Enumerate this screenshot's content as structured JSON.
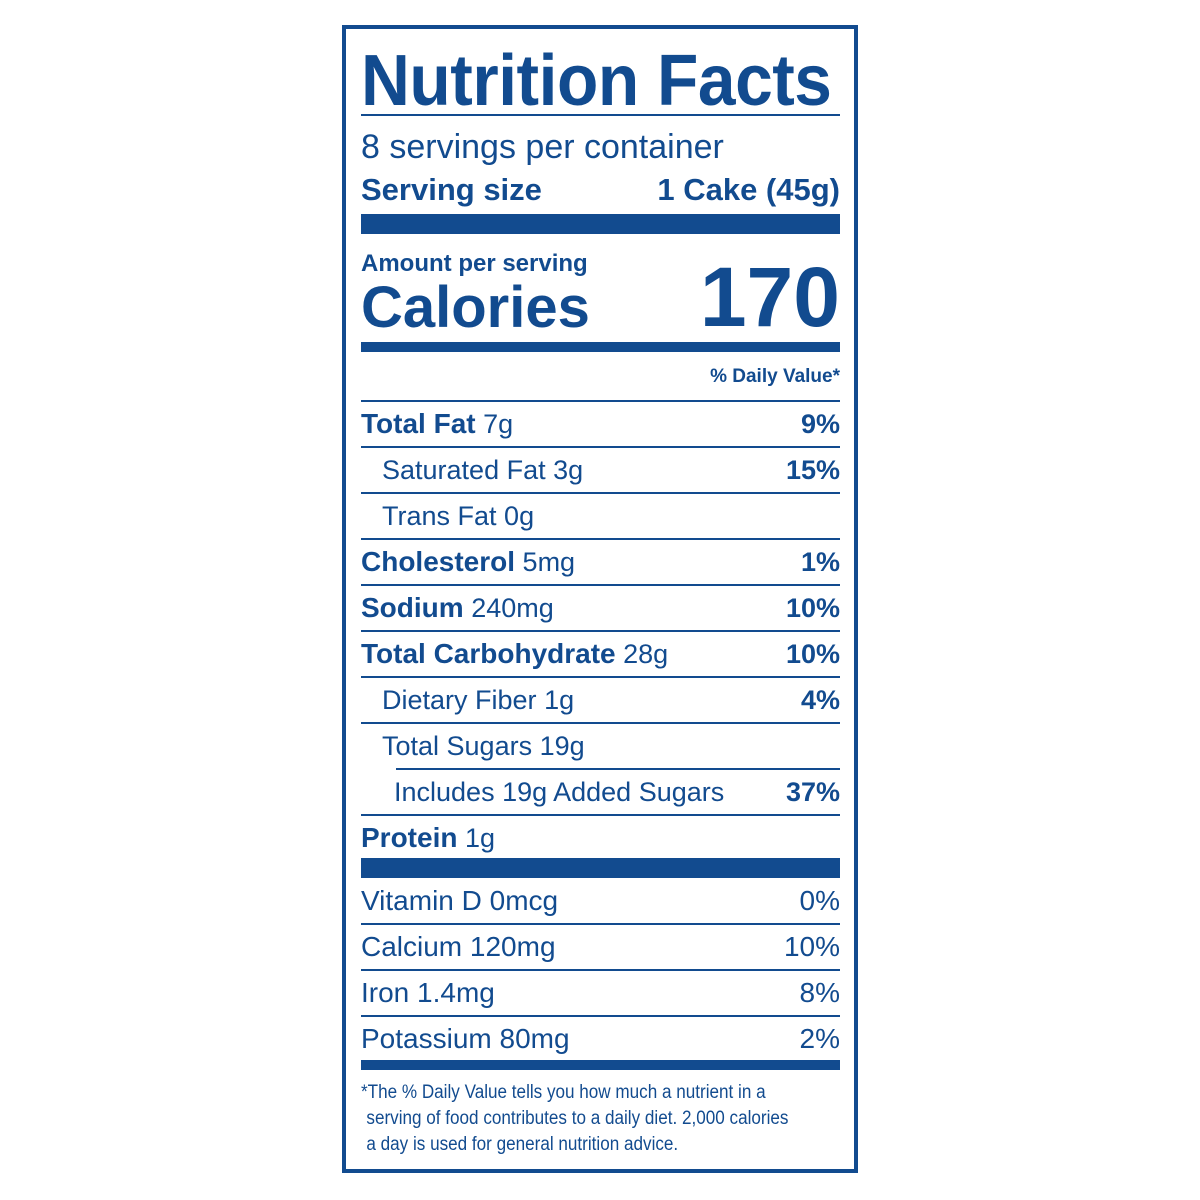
{
  "title": "Nutrition Facts",
  "servings_per_container": "8 servings per container",
  "serving_size_label": "Serving size",
  "serving_size_value": "1 Cake (45g)",
  "amount_per_serving": "Amount per serving",
  "calories_label": "Calories",
  "calories_value": "170",
  "daily_value_header": "% Daily Value*",
  "nutrients": [
    {
      "name": "Total Fat",
      "amount": "7g",
      "dv": "9%"
    },
    {
      "name": "Saturated Fat",
      "amount": "3g",
      "dv": "15%"
    },
    {
      "name": "Trans Fat",
      "amount": "0g",
      "dv": ""
    },
    {
      "name": "Cholesterol",
      "amount": "5mg",
      "dv": "1%"
    },
    {
      "name": "Sodium",
      "amount": "240mg",
      "dv": "10%"
    },
    {
      "name": "Total Carbohydrate",
      "amount": "28g",
      "dv": "10%"
    },
    {
      "name": "Dietary Fiber",
      "amount": "1g",
      "dv": "4%"
    },
    {
      "name": "Total Sugars",
      "amount": "19g",
      "dv": ""
    },
    {
      "name": "Includes 19g Added Sugars",
      "amount": "",
      "dv": "37%"
    },
    {
      "name": "Protein",
      "amount": "1g",
      "dv": ""
    }
  ],
  "vitamins": [
    {
      "text": "Vitamin D 0mcg",
      "dv": "0%"
    },
    {
      "text": "Calcium 120mg",
      "dv": "10%"
    },
    {
      "text": "Iron 1.4mg",
      "dv": "8%"
    },
    {
      "text": "Potassium 80mg",
      "dv": "2%"
    }
  ],
  "footnote": [
    "*The % Daily Value tells you how much a nutrient in a",
    "serving of food contributes to a daily diet. 2,000 calories",
    "a day is used for general nutrition advice."
  ],
  "colors": {
    "ink": "#124b8f",
    "background": "#ffffff"
  }
}
